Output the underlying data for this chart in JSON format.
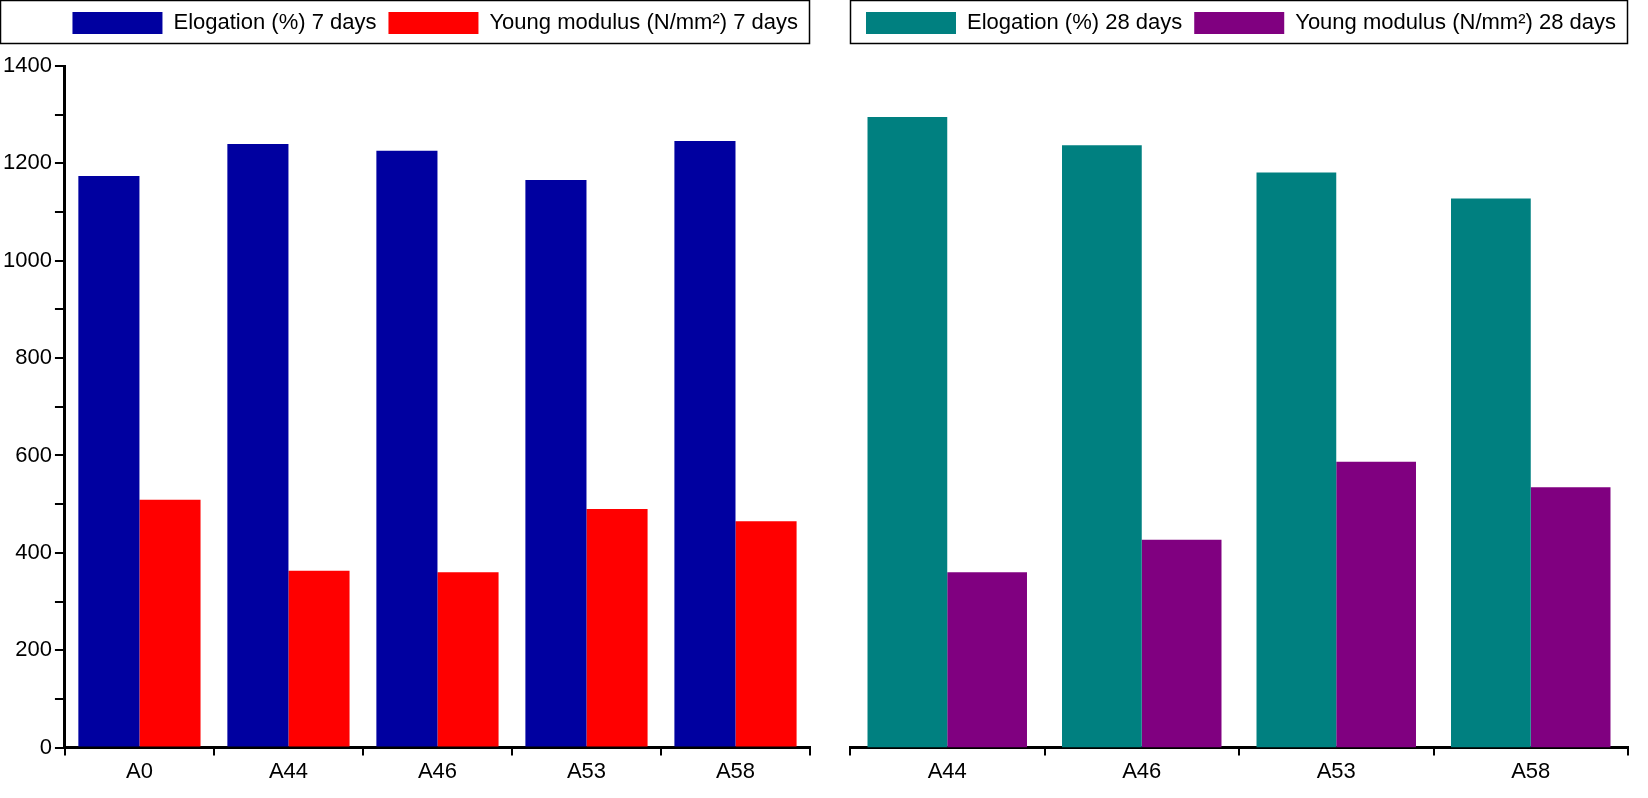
{
  "chart_data": [
    {
      "type": "bar",
      "categories": [
        "A0",
        "A44",
        "A46",
        "A53",
        "A58"
      ],
      "series": [
        {
          "name": "Elogation (%) 7 days",
          "color": "#0000a0",
          "values": [
            1174,
            1240,
            1226,
            1166,
            1246
          ]
        },
        {
          "name": "Young modulus (N/mm²) 7 days",
          "color": "#ff0000",
          "values": [
            509,
            363,
            360,
            490,
            465
          ]
        }
      ],
      "ylim": [
        0,
        1400
      ],
      "yticks": [
        0,
        {
          "value": 100,
          "label": null
        },
        200,
        {
          "value": 300,
          "label": null
        },
        400,
        {
          "value": 500,
          "label": null
        },
        600,
        {
          "value": 700,
          "label": null
        },
        800,
        {
          "value": 900,
          "label": null
        },
        1000,
        {
          "value": 1100,
          "label": null
        },
        1200,
        {
          "value": 1300,
          "label": null
        },
        1400
      ],
      "grid": false,
      "legend": "top"
    },
    {
      "type": "bar",
      "categories": [
        "A44",
        "A46",
        "A53",
        "A58"
      ],
      "series": [
        {
          "name": "Elogation (%) 28 days",
          "color": "#008080",
          "values": [
            1295,
            1237,
            1181,
            1128
          ]
        },
        {
          "name": "Young modulus (N/mm²) 28 days",
          "color": "#800080",
          "values": [
            360,
            427,
            587,
            535
          ]
        }
      ],
      "ylim": [
        0,
        1400
      ],
      "tick_labels": "x",
      "grid": false,
      "legend": "top"
    }
  ]
}
